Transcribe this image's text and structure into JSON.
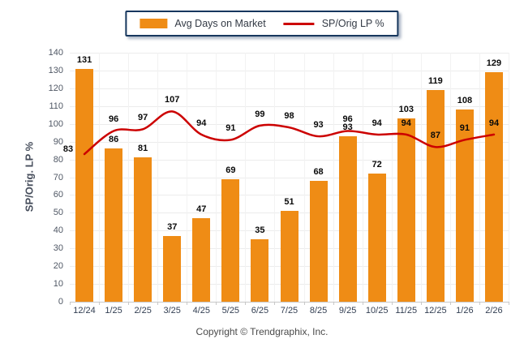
{
  "legend": {
    "items": [
      {
        "label": "Avg Days on Market",
        "swatch": "bar-swatch",
        "color": "#EF8C15"
      },
      {
        "label": "SP/Orig LP %",
        "swatch": "line-swatch",
        "color": "#CC0000"
      }
    ]
  },
  "chart_data": {
    "type": "bar+line",
    "categories": [
      "12/24",
      "1/25",
      "2/25",
      "3/25",
      "4/25",
      "5/25",
      "6/25",
      "7/25",
      "8/25",
      "9/25",
      "10/25",
      "11/25",
      "12/25",
      "1/26",
      "2/26"
    ],
    "series": [
      {
        "name": "Avg Days on Market",
        "type": "bar",
        "color": "#EF8C15",
        "values": [
          131,
          86,
          81,
          37,
          47,
          69,
          35,
          51,
          68,
          93,
          72,
          103,
          119,
          108,
          129
        ]
      },
      {
        "name": "SP/Orig LP %",
        "type": "line",
        "color": "#CC0000",
        "values": [
          83,
          96,
          97,
          107,
          94,
          91,
          99,
          98,
          93,
          96,
          94,
          94,
          87,
          91,
          94
        ]
      }
    ],
    "ylabel": "SP/Orig. LP %",
    "ylim": [
      0,
      140
    ],
    "yticks": [
      0,
      10,
      20,
      30,
      40,
      50,
      60,
      70,
      80,
      90,
      100,
      110,
      120,
      130,
      140
    ],
    "grid": true,
    "data_labels": true,
    "legend_position": "top-center"
  },
  "footer": {
    "copyright": "Copyright © Trendgraphix, Inc."
  },
  "colors": {
    "bar": "#EF8C15",
    "line": "#CC0000",
    "legend_border": "#17375E",
    "grid": "#ECECEC",
    "axis": "#C8C8C8"
  }
}
